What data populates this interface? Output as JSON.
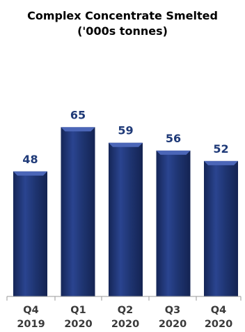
{
  "chart_data": {
    "type": "bar",
    "title_lines": [
      "Complex Concentrate Smelted",
      "('000s tonnes)"
    ],
    "categories": [
      [
        "Q4",
        "2019"
      ],
      [
        "Q1",
        "2020"
      ],
      [
        "Q2",
        "2020"
      ],
      [
        "Q3",
        "2020"
      ],
      [
        "Q4",
        "2020"
      ]
    ],
    "values": [
      48,
      65,
      59,
      56,
      52
    ],
    "ylim": [
      0,
      75
    ],
    "grid": false,
    "legend": "none",
    "colors": {
      "bar_face": "#1E3470",
      "bar_highlight": "#2E4C9E",
      "bar_top": "#4B66B8",
      "value_label": "#1F3A78",
      "axis": "#9A9A9A",
      "category_label": "#3A3A3A"
    }
  }
}
